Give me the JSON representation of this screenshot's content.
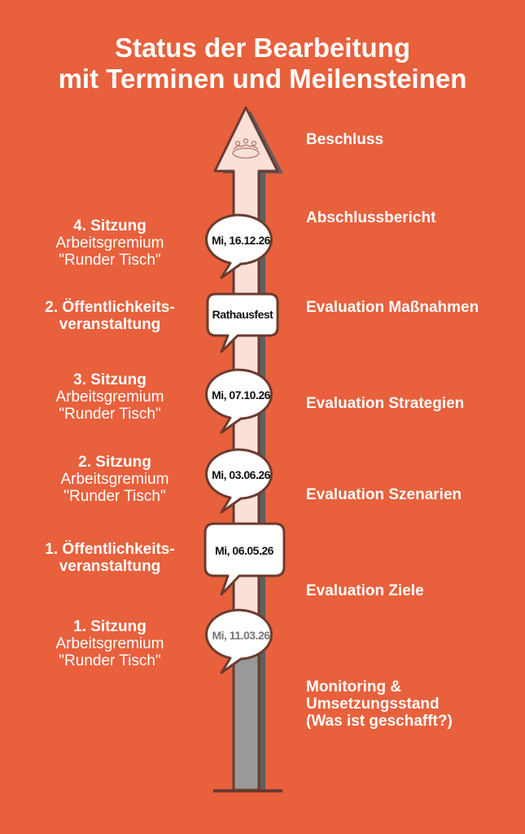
{
  "title": [
    "Status der Bearbeitung",
    "mit Terminen und Meilensteinen"
  ],
  "colors": {
    "background": "#e8603c",
    "arrow_future": "#fbe0d8",
    "arrow_done": "#999999",
    "outline": "#6b3b2e"
  },
  "arrow_icon": "round-table-meeting-icon",
  "milestones": [
    {
      "label": "Beschluss"
    },
    {
      "label": "Abschlussbericht"
    },
    {
      "label": "Evaluation Maßnahmen"
    },
    {
      "label": "Evaluation Strategien"
    },
    {
      "label": "Evaluation Szenarien"
    },
    {
      "label": "Evaluation Ziele"
    },
    {
      "label": "Monitoring & Umsetzungsstand (Was ist geschafft?)",
      "lines": [
        "Monitoring &",
        "Umsetzungsstand",
        "(Was ist geschafft?)"
      ]
    }
  ],
  "events": [
    {
      "title": "4. Sitzung",
      "sub1": "Arbeitsgremium",
      "sub2": "\"Runder Tisch\"",
      "date": "Mi, 16.12.26"
    },
    {
      "title": "2. Öffentlichkeits-",
      "sub1": "veranstaltung",
      "date": "Rathausfest"
    },
    {
      "title": "3. Sitzung",
      "sub1": "Arbeitsgremium",
      "sub2": "\"Runder Tisch\"",
      "date": "Mi, 07.10.26"
    },
    {
      "title": "2. Sitzung",
      "sub1": "Arbeitsgremium",
      "sub2": "\"Runder Tisch\"",
      "date": "Mi, 03.06.26"
    },
    {
      "title": "1. Öffentlichkeits-",
      "sub1": "veranstaltung",
      "date": "Mi, 06.05.26"
    },
    {
      "title": "1. Sitzung",
      "sub1": "Arbeitsgremium",
      "sub2": "\"Runder Tisch\"",
      "date": "Mi, 11.03.26",
      "status": "done"
    }
  ]
}
